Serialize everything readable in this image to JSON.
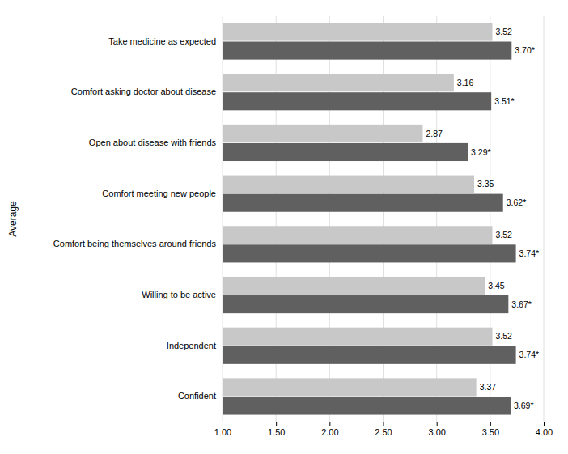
{
  "chart_data": {
    "type": "bar",
    "orientation": "horizontal",
    "categories": [
      "Take medicine as expected",
      "Comfort asking doctor about disease",
      "Open about disease with friends",
      "Comfort meeting new people",
      "Comfort being themselves around friends",
      "Willing to be active",
      "Independent",
      "Confident"
    ],
    "series": [
      {
        "color": "#c8c8c8",
        "values": [
          3.52,
          3.16,
          2.87,
          3.35,
          3.52,
          3.45,
          3.52,
          3.37
        ]
      },
      {
        "color": "#606060",
        "values": [
          3.7,
          3.51,
          3.29,
          3.62,
          3.74,
          3.67,
          3.74,
          3.69
        ],
        "value_labels": [
          "3.70*",
          "3.51*",
          "3.29*",
          "3.62*",
          "3.74*",
          "3.67*",
          "3.74*",
          "3.69*"
        ]
      }
    ],
    "ylabel": "Average",
    "xlim": [
      1.0,
      4.0
    ],
    "xticks": [
      {
        "value": 1.0,
        "label": "1.00"
      },
      {
        "value": 1.5,
        "label": "1.50"
      },
      {
        "value": 2.0,
        "label": "2.00"
      },
      {
        "value": 2.5,
        "label": "2.50"
      },
      {
        "value": 3.0,
        "label": "3.00"
      },
      {
        "value": 3.5,
        "label": "3.50"
      },
      {
        "value": 4.0,
        "label": "4.00"
      }
    ],
    "grid": true,
    "data_labels": true
  }
}
